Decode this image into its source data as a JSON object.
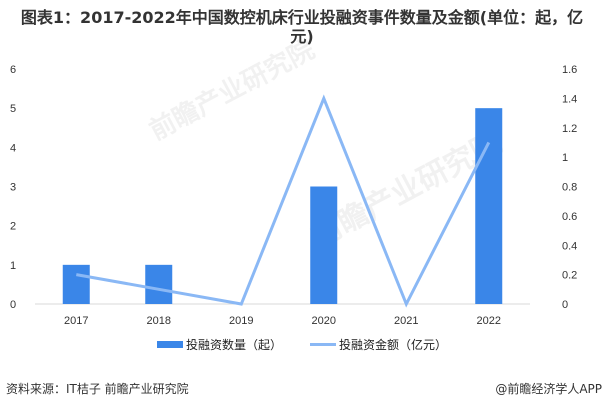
{
  "title": {
    "line1": "图表1：2017-2022年中国数控机床行业投融资事件数量及金额(单位：起，亿",
    "line2": "元)"
  },
  "chart_data": {
    "type": "bar",
    "title": "图表1：2017-2022年中国数控机床行业投融资事件数量及金额(单位：起，亿元)",
    "categories": [
      "2017",
      "2018",
      "2019",
      "2020",
      "2021",
      "2022"
    ],
    "series": [
      {
        "name": "投融资数量（起）",
        "type": "bar",
        "axis": "left",
        "color": "#3a86e8",
        "values": [
          1,
          1,
          0,
          3,
          0,
          5
        ]
      },
      {
        "name": "投融资金额（亿元）",
        "type": "line",
        "axis": "right",
        "color": "#8ab8f5",
        "values": [
          0.2,
          0.1,
          0,
          1.4,
          0,
          1.1
        ]
      }
    ],
    "left_axis": {
      "ylim": [
        0,
        6
      ],
      "ticks": [
        "0",
        "1",
        "2",
        "3",
        "4",
        "5",
        "6"
      ]
    },
    "right_axis": {
      "ylim": [
        0,
        1.6
      ],
      "ticks": [
        "0",
        "0.2",
        "0.4",
        "0.6",
        "0.8",
        "1",
        "1.2",
        "1.4",
        "1.6"
      ]
    },
    "xlabel": "",
    "ylabel": "",
    "grid": false,
    "legend_position": "bottom"
  },
  "legend": {
    "bar_label": "投融资数量（起）",
    "line_label": "投融资金额（亿元）"
  },
  "footer": {
    "source": "资料来源：IT桔子 前瞻产业研究院",
    "credit": "@前瞻经济学人APP"
  },
  "watermark": "前瞻产业研究院"
}
